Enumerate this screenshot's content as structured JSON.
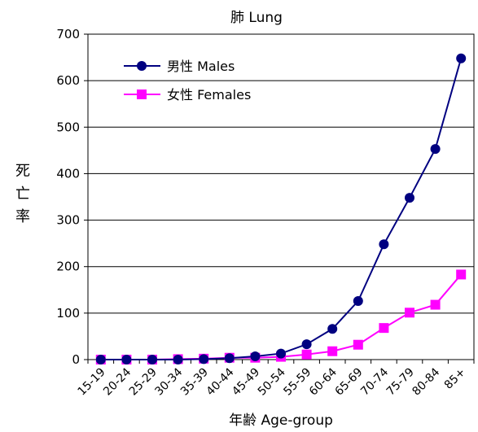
{
  "chart_data": {
    "type": "line",
    "title": "肺 Lung",
    "xlabel": "年齢 Age-group",
    "ylabel": "死亡率",
    "ylabel_chars": [
      "死",
      "亡",
      "率"
    ],
    "categories": [
      "15-19",
      "20-24",
      "25-29",
      "30-34",
      "35-39",
      "40-44",
      "45-49",
      "50-54",
      "55-59",
      "60-64",
      "65-69",
      "70-74",
      "75-79",
      "80-84",
      "85+"
    ],
    "ylim": [
      0,
      700
    ],
    "yticks": [
      "0",
      "100",
      "200",
      "300",
      "400",
      "500",
      "600",
      "700"
    ],
    "grid": "horizontal",
    "legend_position": "top-left",
    "series": [
      {
        "name": "男性 Males",
        "color": "#000080",
        "marker": "circle",
        "values": [
          0,
          0,
          0,
          0,
          1,
          3,
          7,
          13,
          33,
          66,
          126,
          248,
          348,
          453,
          648
        ]
      },
      {
        "name": "女性 Females",
        "color": "#ff00ff",
        "marker": "square",
        "values": [
          0,
          0,
          0,
          1,
          2,
          4,
          4,
          6,
          11,
          18,
          32,
          68,
          101,
          118,
          183
        ]
      }
    ]
  }
}
